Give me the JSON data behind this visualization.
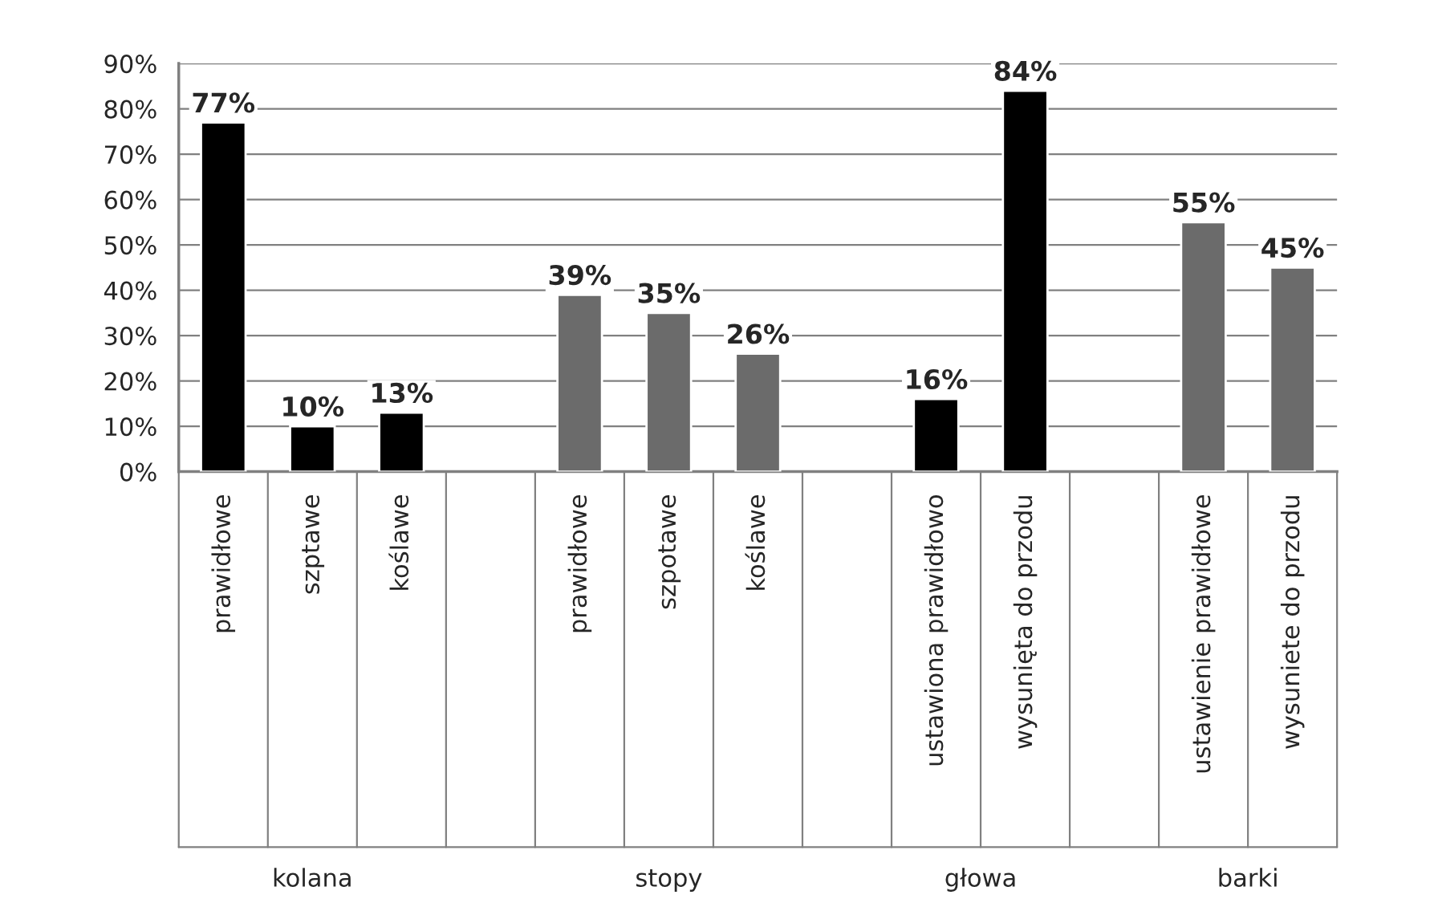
{
  "chart_data": {
    "type": "bar",
    "categories": [
      "prawidłowe",
      "szptawe",
      "koślawe",
      null,
      "prawidłowe",
      "szpotawe",
      "koślawe",
      null,
      "ustawiona prawidłowo",
      "wysunięta do przodu",
      null,
      "ustawienie prawidłowe",
      "wysuniete do przodu"
    ],
    "values": [
      77,
      10,
      13,
      null,
      39,
      35,
      26,
      null,
      16,
      84,
      null,
      55,
      45
    ],
    "colors": [
      "#000000",
      "#000000",
      "#000000",
      null,
      "#6b6b6b",
      "#6b6b6b",
      "#6b6b6b",
      null,
      "#000000",
      "#000000",
      null,
      "#6b6b6b",
      "#6b6b6b"
    ],
    "value_labels": [
      "77%",
      "10%",
      "13%",
      null,
      "39%",
      "35%",
      "26%",
      null,
      "16%",
      "84%",
      null,
      "55%",
      "45%"
    ],
    "ylim": [
      0,
      90
    ],
    "yticks": [
      {
        "value": 0,
        "label": "0%"
      },
      {
        "value": 10,
        "label": "10%"
      },
      {
        "value": 20,
        "label": "20%"
      },
      {
        "value": 30,
        "label": "30%"
      },
      {
        "value": 40,
        "label": "40%"
      },
      {
        "value": 50,
        "label": "50%"
      },
      {
        "value": 60,
        "label": "60%"
      },
      {
        "value": 70,
        "label": "70%"
      },
      {
        "value": 80,
        "label": "80%"
      },
      {
        "value": 90,
        "label": "90%"
      }
    ],
    "grid": "y",
    "annotations": [
      "kolana",
      "stopy",
      "głowa",
      "barki"
    ]
  }
}
